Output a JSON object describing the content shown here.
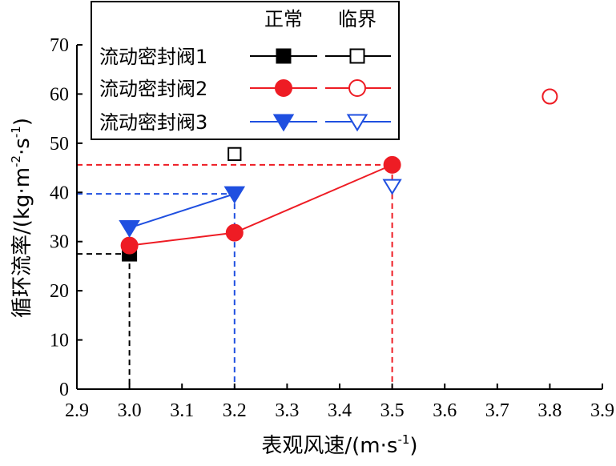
{
  "chart_data": {
    "type": "scatter",
    "xlabel": "表观风速/(m·s",
    "xlabel_sup": "-1",
    "xlabel_close": ")",
    "ylabel": "循环流率/(kg·m",
    "ylabel_sup1": "-2",
    "ylabel_mid": "·s",
    "ylabel_sup2": "-1",
    "ylabel_close": ")",
    "xlim": [
      2.9,
      3.9
    ],
    "ylim": [
      0,
      70
    ],
    "xticks": [
      "2.9",
      "3.0",
      "3.1",
      "3.2",
      "3.3",
      "3.4",
      "3.5",
      "3.6",
      "3.7",
      "3.8",
      "3.9"
    ],
    "yticks": [
      "0",
      "10",
      "20",
      "30",
      "40",
      "50",
      "60",
      "70"
    ],
    "legend_headers": [
      "正常",
      "临界"
    ],
    "legend_position": "top-left",
    "series": [
      {
        "name": "流动密封阀1",
        "color": "#000000",
        "marker": "square",
        "normal": [
          {
            "x": 3.0,
            "y": 27.5
          }
        ],
        "critical": [
          {
            "x": 3.2,
            "y": 47.8
          }
        ],
        "guide": {
          "x": 3.0,
          "y": 27.5
        }
      },
      {
        "name": "流动密封阀2",
        "color": "#ee1c24",
        "marker": "circle",
        "normal": [
          {
            "x": 3.0,
            "y": 29.2
          },
          {
            "x": 3.2,
            "y": 31.8
          },
          {
            "x": 3.5,
            "y": 45.6
          }
        ],
        "critical": [
          {
            "x": 3.8,
            "y": 59.5
          }
        ],
        "guide": {
          "x": 3.5,
          "y": 45.6
        }
      },
      {
        "name": "流动密封阀3",
        "color": "#1f4fe0",
        "marker": "triangle-down",
        "normal": [
          {
            "x": 3.0,
            "y": 32.8
          },
          {
            "x": 3.2,
            "y": 39.7
          }
        ],
        "critical": [
          {
            "x": 3.5,
            "y": 41.3
          }
        ],
        "guide": {
          "x": 3.2,
          "y": 39.7
        }
      }
    ]
  }
}
